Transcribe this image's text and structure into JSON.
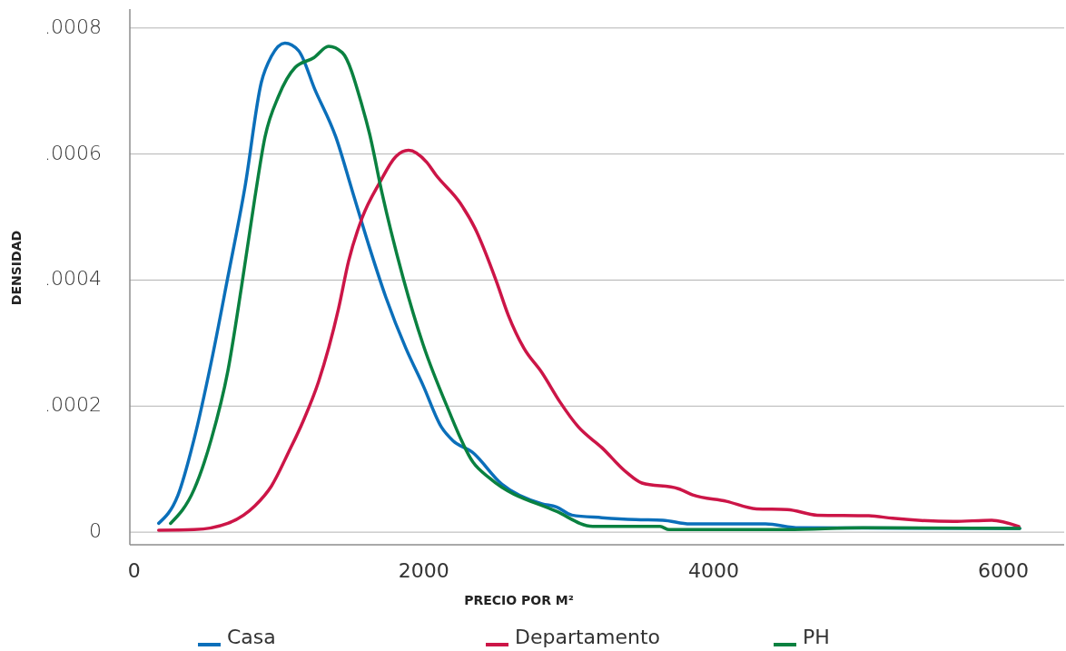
{
  "chart_data": {
    "type": "line",
    "xlabel": "PRECIO POR M²",
    "ylabel": "DENSIDAD",
    "xlim": [
      -30,
      6420
    ],
    "ylim": [
      -2e-05,
      0.00083
    ],
    "xticks": [
      0,
      2000,
      4000,
      6000
    ],
    "yticks": [
      {
        "value": 0,
        "label": "0"
      },
      {
        "value": 0.0002,
        "label": ".0002"
      },
      {
        "value": 0.0004,
        "label": ".0004"
      },
      {
        "value": 0.0006,
        "label": ".0006"
      },
      {
        "value": 0.0008,
        "label": ".0008"
      }
    ],
    "grid": "y",
    "legend": "bottom",
    "marker": "none",
    "line_style": "solid",
    "series": [
      {
        "name": "Casa",
        "color": "#0b6fba",
        "x": [
          169,
          301,
          414,
          533,
          646,
          765,
          878,
          947,
          1041,
          1135,
          1248,
          1392,
          1505,
          1624,
          1737,
          1875,
          1994,
          2120,
          2201,
          2333,
          2539,
          2815,
          2915,
          3022,
          3229,
          3461,
          3649,
          3837,
          4358,
          4590,
          6113
        ],
        "values": [
          1.4e-05,
          5.8e-05,
          0.000148,
          0.000271,
          0.000404,
          0.000548,
          0.000714,
          0.000755,
          0.000776,
          0.000764,
          0.000702,
          0.000627,
          0.000542,
          0.000452,
          0.000373,
          0.000292,
          0.000233,
          0.000167,
          0.000145,
          0.000127,
          7.6e-05,
          4.5e-05,
          4e-05,
          2.7e-05,
          2.3e-05,
          2e-05,
          1.9e-05,
          1.3e-05,
          1.3e-05,
          7e-06,
          6e-06
        ]
      },
      {
        "name": "Departamento",
        "color": "#cc1547",
        "x": [
          169,
          414,
          646,
          834,
          947,
          1066,
          1166,
          1273,
          1411,
          1480,
          1574,
          1693,
          1806,
          1894,
          2019,
          2082,
          2251,
          2351,
          2502,
          2583,
          2690,
          2815,
          2941,
          3066,
          3229,
          3398,
          3505,
          3756,
          3856,
          4088,
          4295,
          4508,
          4715,
          5072,
          5235,
          5655,
          5919,
          6107
        ],
        "values": [
          3e-06,
          4e-06,
          1.4e-05,
          4.2e-05,
          7.3e-05,
          0.000127,
          0.000176,
          0.000239,
          0.000355,
          0.00043,
          0.000499,
          0.000554,
          0.000596,
          0.000606,
          0.000587,
          0.000567,
          0.000522,
          0.000483,
          0.000397,
          0.000344,
          0.000292,
          0.000253,
          0.000206,
          0.000167,
          0.000134,
          9.5e-05,
          7.8e-05,
          6.9e-05,
          5.9e-05,
          4.9e-05,
          3.7e-05,
          3.6e-05,
          2.7e-05,
          2.6e-05,
          2.2e-05,
          1.7e-05,
          1.9e-05,
          9e-06
        ]
      },
      {
        "name": "PH",
        "color": "#0a8140",
        "x": [
          251,
          414,
          533,
          646,
          740,
          834,
          903,
          997,
          1110,
          1241,
          1342,
          1436,
          1574,
          1624,
          1712,
          1856,
          1994,
          2157,
          2339,
          2458,
          2915,
          3166,
          3630,
          3693,
          4508,
          5029,
          6113
        ],
        "values": [
          1.4e-05,
          6.8e-05,
          0.000148,
          0.000255,
          0.000388,
          0.000532,
          0.000627,
          0.000692,
          0.000737,
          0.000753,
          0.000771,
          0.000761,
          0.000676,
          0.000633,
          0.000537,
          0.000404,
          0.000298,
          0.000201,
          0.000111,
          8.5e-05,
          3.3e-05,
          9e-06,
          9e-06,
          4e-06,
          4e-06,
          7e-06,
          6e-06
        ]
      }
    ]
  }
}
